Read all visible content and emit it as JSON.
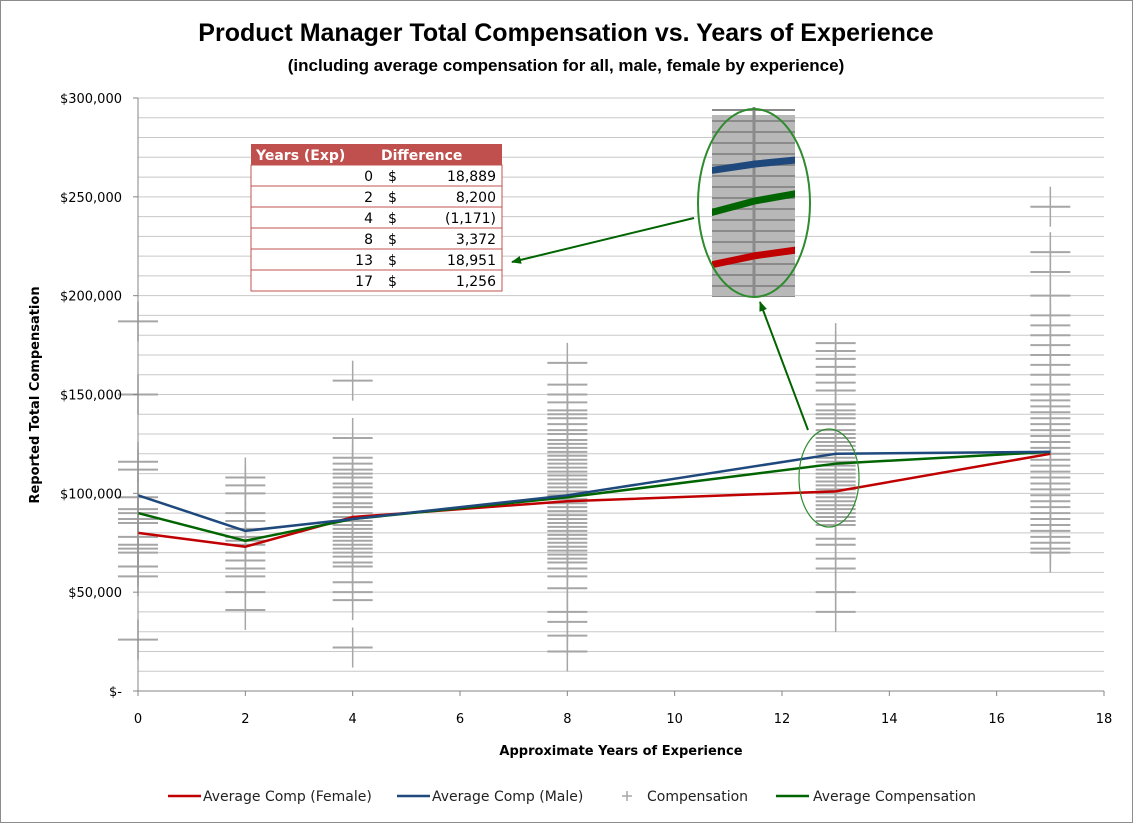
{
  "chart_data": {
    "type": "line",
    "title": "Product Manager Total Compensation vs. Years of Experience",
    "subtitle": "(including average compensation for all, male, female by experience)",
    "xlabel": "Approximate Years of Experience",
    "ylabel": "Reported Total Compensation",
    "xlim": [
      0,
      18
    ],
    "ylim": [
      0,
      300000
    ],
    "x_ticks": [
      0,
      2,
      4,
      6,
      8,
      10,
      12,
      14,
      16,
      18
    ],
    "y_ticks": [
      0,
      50000,
      100000,
      150000,
      200000,
      250000,
      300000
    ],
    "y_tick_labels": [
      "$-",
      "$50,000",
      "$100,000",
      "$150,000",
      "$200,000",
      "$250,000",
      "$300,000"
    ],
    "gridlines": true,
    "legend_position": "bottom",
    "series": [
      {
        "name": "Average Comp (Female)",
        "color": "#c00000",
        "x": [
          0,
          2,
          4,
          8,
          13,
          17
        ],
        "y": [
          80000,
          73000,
          88000,
          96000,
          101000,
          120000
        ]
      },
      {
        "name": "Average Comp (Male)",
        "color": "#1f497d",
        "x": [
          0,
          2,
          4,
          8,
          13,
          17
        ],
        "y": [
          99000,
          81000,
          87000,
          99000,
          120000,
          121000
        ]
      },
      {
        "name": "Compensation",
        "color": "#a6a6a6",
        "marker": "+",
        "points": [
          {
            "x": 0,
            "ys": [
              187000,
              150000,
              116000,
              112000,
              98000,
              92000,
              90000,
              87000,
              85000,
              78000,
              74000,
              72000,
              70000,
              63000,
              58000,
              26000
            ]
          },
          {
            "x": 2,
            "ys": [
              108000,
              104000,
              100000,
              90000,
              86000,
              82000,
              78000,
              76000,
              74000,
              70000,
              66000,
              62000,
              58000,
              50000,
              41000
            ]
          },
          {
            "x": 4,
            "ys": [
              157000,
              128000,
              118000,
              115000,
              112000,
              110000,
              108000,
              105000,
              103000,
              100000,
              98000,
              95000,
              93000,
              90000,
              88000,
              86000,
              84000,
              82000,
              80000,
              78000,
              76000,
              74000,
              72000,
              70000,
              68000,
              65000,
              63000,
              55000,
              50000,
              46000,
              22000
            ]
          },
          {
            "x": 8,
            "ys": [
              166000,
              155000,
              150000,
              146000,
              142000,
              140000,
              138000,
              135000,
              132000,
              130000,
              127000,
              125000,
              123000,
              121000,
              119000,
              117000,
              115000,
              113000,
              111000,
              109000,
              107000,
              105000,
              103000,
              101000,
              99000,
              97000,
              95000,
              93000,
              91000,
              89000,
              87000,
              85000,
              83000,
              81000,
              79000,
              77000,
              75000,
              73000,
              71000,
              69000,
              67000,
              65000,
              62000,
              58000,
              52000,
              40000,
              35000,
              28000,
              20000
            ]
          },
          {
            "x": 13,
            "ys": [
              176000,
              172000,
              168000,
              164000,
              160000,
              156000,
              152000,
              145000,
              142000,
              140000,
              138000,
              135000,
              132000,
              130000,
              128000,
              126000,
              124000,
              122000,
              120000,
              118000,
              116000,
              114000,
              112000,
              110000,
              108000,
              106000,
              104000,
              102000,
              100000,
              98000,
              96000,
              94000,
              92000,
              90000,
              88000,
              86000,
              84000,
              77000,
              74000,
              67000,
              62000,
              50000,
              40000
            ]
          },
          {
            "x": 17,
            "ys": [
              245000,
              222000,
              212000,
              200000,
              190000,
              185000,
              180000,
              175000,
              170000,
              165000,
              160000,
              155000,
              150000,
              147000,
              144000,
              141000,
              138000,
              135000,
              132000,
              129000,
              126000,
              123000,
              120000,
              117000,
              114000,
              111000,
              108000,
              105000,
              102000,
              99000,
              96000,
              93000,
              90000,
              87000,
              84000,
              81000,
              78000,
              75000,
              72000,
              70000
            ]
          }
        ]
      },
      {
        "name": "Average Compensation",
        "color": "#006400",
        "x": [
          0,
          2,
          4,
          8,
          13,
          17
        ],
        "y": [
          90000,
          76000,
          87000,
          98000,
          115000,
          121000
        ]
      }
    ],
    "difference_table": {
      "headers": [
        "Years (Exp)",
        "Difference"
      ],
      "rows": [
        {
          "years": "0",
          "currency": "$",
          "value": "18,889"
        },
        {
          "years": "2",
          "currency": "$",
          "value": "8,200"
        },
        {
          "years": "4",
          "currency": "$",
          "value": "(1,171)"
        },
        {
          "years": "8",
          "currency": "$",
          "value": "3,372"
        },
        {
          "years": "13",
          "currency": "$",
          "value": "18,951"
        },
        {
          "years": "17",
          "currency": "$",
          "value": "1,256"
        }
      ]
    },
    "annotations": [
      {
        "type": "callout-ellipse",
        "target_x": 13,
        "target_y": 110000,
        "color": "#2e8b2e",
        "note": "magnified inset of lines near 13 years"
      },
      {
        "type": "arrow",
        "from": "inset",
        "to": "difference_table",
        "color": "#006400"
      }
    ]
  }
}
